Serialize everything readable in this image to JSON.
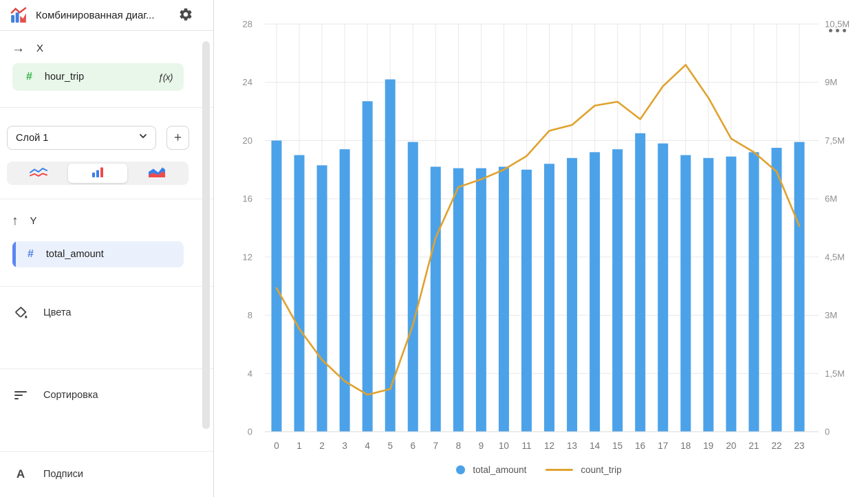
{
  "header": {
    "title": "Комбинированная диаг...",
    "icon": "combo-chart-logo",
    "settings_icon": "gear"
  },
  "sidebar": {
    "x_section": {
      "arrow_glyph": "→",
      "label": "X",
      "field": {
        "type_glyph": "#",
        "name": "hour_trip",
        "formula_label": "ƒ(x)"
      }
    },
    "layer_section": {
      "selected_layer": "Слой 1",
      "add_button_label": "+",
      "chart_type_options": [
        "line",
        "bar",
        "area"
      ],
      "selected_chart_type": "bar"
    },
    "y_section": {
      "arrow_glyph": "↑",
      "label": "Y",
      "field": {
        "type_glyph": "#",
        "name": "total_amount"
      }
    },
    "menu_items": [
      {
        "label": "Цвета",
        "icon": "paint-bucket"
      },
      {
        "label": "Сортировка",
        "icon": "sort-lines"
      },
      {
        "label": "Подписи",
        "icon": "letter-a"
      }
    ],
    "scrollbar": true
  },
  "chart": {
    "more_menu_icon": "ellipsis-dots"
  },
  "colors": {
    "bar_blue": "#4CA2E8",
    "line_orange": "#E0A22E",
    "dimension_green": "#2FB441",
    "measure_blue": "#4E7FE8"
  },
  "chart_data": {
    "type": "combo",
    "categories": [
      0,
      1,
      2,
      3,
      4,
      5,
      6,
      7,
      8,
      9,
      10,
      11,
      12,
      13,
      14,
      15,
      16,
      17,
      18,
      19,
      20,
      21,
      22,
      23
    ],
    "series": [
      {
        "name": "total_amount",
        "type": "bar",
        "y_axis": "left",
        "color": "#4CA2E8",
        "values": [
          20.0,
          19.0,
          18.3,
          19.4,
          22.7,
          24.2,
          19.9,
          18.2,
          18.1,
          18.1,
          18.2,
          18.0,
          18.4,
          18.8,
          19.2,
          19.4,
          20.5,
          19.8,
          19.0,
          18.8,
          18.9,
          19.2,
          19.5,
          19.9
        ]
      },
      {
        "name": "count_trip",
        "type": "line",
        "y_axis": "right",
        "color": "#E0A22E",
        "values": [
          3700000,
          2650000,
          1850000,
          1300000,
          950000,
          1100000,
          2750000,
          5000000,
          6300000,
          6500000,
          6750000,
          7100000,
          7750000,
          7900000,
          8400000,
          8500000,
          8050000,
          8900000,
          9450000,
          8600000,
          7550000,
          7200000,
          6700000,
          5300000
        ]
      }
    ],
    "left_axis": {
      "min": 0,
      "max": 28,
      "ticks": [
        0,
        4,
        8,
        12,
        16,
        20,
        24,
        28
      ]
    },
    "right_axis": {
      "min": 0,
      "max": 10500000,
      "tick_values": [
        0,
        1500000,
        3000000,
        4500000,
        6000000,
        7500000,
        9000000,
        10500000
      ],
      "tick_labels": [
        "0",
        "1,5M",
        "3M",
        "4,5M",
        "6M",
        "7,5M",
        "9M",
        "10,5M"
      ]
    },
    "grid": true,
    "legend": {
      "position": "bottom",
      "items": [
        {
          "label": "total_amount",
          "marker": "circle",
          "color": "#4CA2E8"
        },
        {
          "label": "count_trip",
          "marker": "line",
          "color": "#E0A22E"
        }
      ]
    }
  }
}
